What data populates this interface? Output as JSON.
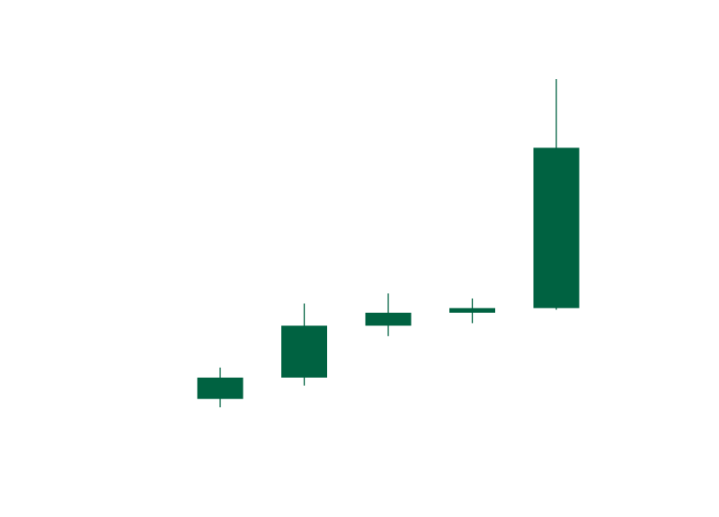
{
  "colors": {
    "background": "#ffffff",
    "up": "#006241"
  },
  "chart_data": {
    "type": "candlestick",
    "title": "",
    "xlabel": "",
    "ylabel": "",
    "grid": false,
    "ylim": [
      0,
      100
    ],
    "candles": [
      {
        "open": 22.6,
        "close": 27.7,
        "high": 30.1,
        "low": 20.6
      },
      {
        "open": 27.7,
        "close": 40.1,
        "high": 45.4,
        "low": 25.8
      },
      {
        "open": 40.1,
        "close": 43.2,
        "high": 47.8,
        "low": 37.6
      },
      {
        "open": 43.2,
        "close": 44.3,
        "high": 46.6,
        "low": 40.7
      },
      {
        "open": 44.3,
        "close": 82.6,
        "high": 99.0,
        "low": 43.9
      }
    ]
  }
}
